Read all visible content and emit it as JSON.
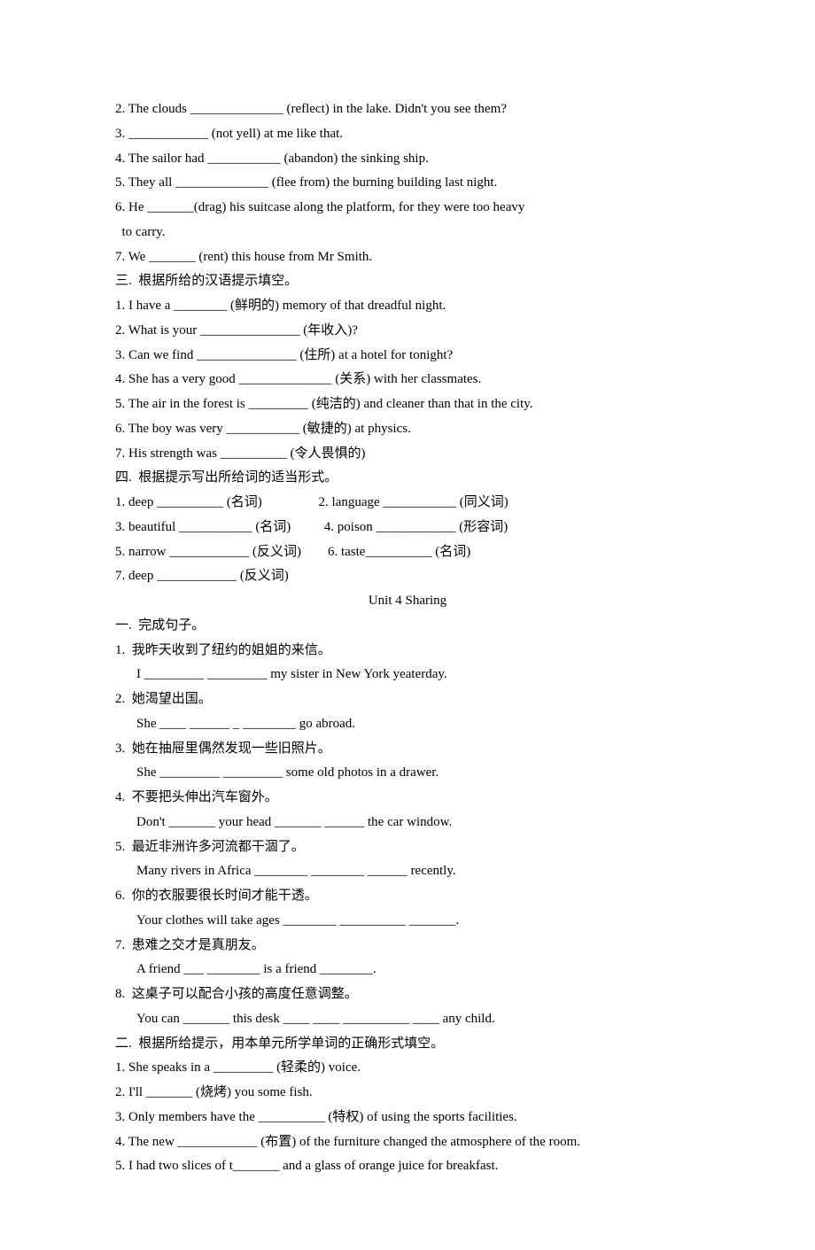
{
  "section2_cont": [
    "2. The clouds ______________ (reflect) in the lake. Didn't you see them?",
    "3. ____________ (not yell) at me like that.",
    "4. The sailor had ___________ (abandon) the sinking ship.",
    "5. They all ______________ (flee from) the burning building last night.",
    "6. He _______(drag) his suitcase along the platform, for they were too heavy",
    "  to carry.",
    "7. We _______ (rent) this house from Mr Smith."
  ],
  "section3_header": "三.  根据所给的汉语提示填空。",
  "section3": [
    "1. I have a ________ (鲜明的) memory of that dreadful night.",
    "2. What is your _______________ (年收入)?",
    "3. Can we find _______________ (住所) at a hotel for tonight?",
    "4. She has a very good ______________ (关系) with her classmates.",
    "5. The air in the forest is _________ (纯洁的) and cleaner than that in the city.",
    "6. The boy was very ___________ (敏捷的) at physics.",
    "7. His strength was __________ (令人畏惧的)"
  ],
  "section4_header": "四.  根据提示写出所给词的适当形式。",
  "section4": [
    "1. deep __________ (名词)                 2. language ___________ (同义词)",
    "3. beautiful ___________ (名词)          4. poison ____________ (形容词)",
    "5. narrow ____________ (反义词)        6. taste__________ (名词)",
    "7. deep ____________ (反义词)"
  ],
  "unit_title": "Unit 4 Sharing",
  "sectionA_header": "一.  完成句子。",
  "sectionA": [
    {
      "zh": "1.  我昨天收到了纽约的姐姐的来信。",
      "en": "I _________ _________ my sister in New York yeaterday."
    },
    {
      "zh": "2.  她渴望出国。",
      "en": "She ____ ______ _ ________ go abroad."
    },
    {
      "zh": "3.  她在抽屉里偶然发现一些旧照片。",
      "en": "She _________ _________ some old photos in a drawer."
    },
    {
      "zh": "4.  不要把头伸出汽车窗外。",
      "en": "Don't _______ your head _______ ______ the car window."
    },
    {
      "zh": "5.  最近非洲许多河流都干涸了。",
      "en": "Many rivers in Africa ________ ________ ______ recently."
    },
    {
      "zh": "6.  你的衣服要很长时间才能干透。",
      "en": "Your clothes will take ages ________ __________ _______."
    },
    {
      "zh": "7.  患难之交才是真朋友。",
      "en": "A friend ___ ________ is a friend ________."
    },
    {
      "zh": "8.  这桌子可以配合小孩的高度任意调整。",
      "en": "You can _______ this desk ____ ____ __________ ____ any child."
    }
  ],
  "sectionB_header": "二.  根据所给提示，用本单元所学单词的正确形式填空。",
  "sectionB": [
    "1. She speaks in a _________ (轻柔的) voice.",
    "2. I'll _______ (烧烤) you some fish.",
    "3. Only members have the __________ (特权) of using the sports facilities.",
    "4. The new ____________ (布置) of the furniture changed the atmosphere of the room.",
    "5. I had two slices of t_______ and a glass of orange juice for breakfast."
  ]
}
